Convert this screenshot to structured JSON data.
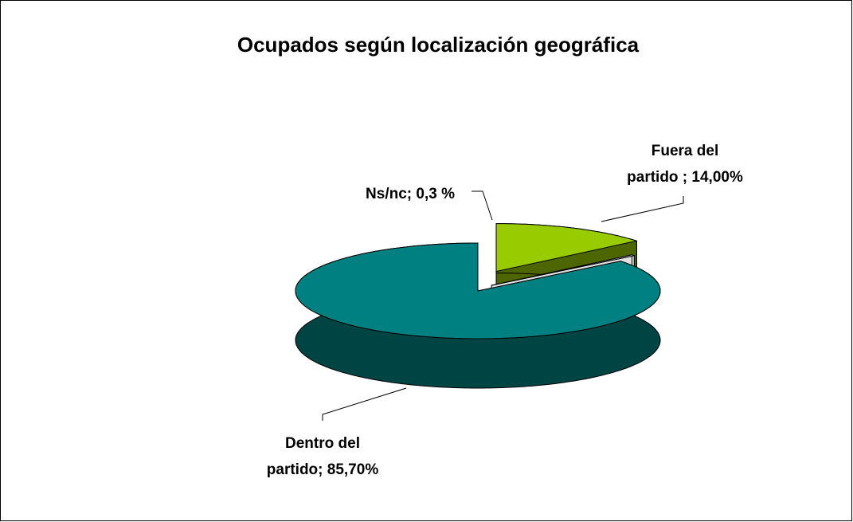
{
  "chart_data": {
    "type": "pie3d",
    "title": "Ocupados según localización geográfica",
    "categories": [
      "Dentro del partido",
      "Fuera del partido",
      "Ns/nc"
    ],
    "values": [
      85.7,
      14.0,
      0.3
    ],
    "value_labels": [
      [
        "Dentro del",
        "partido; 85,70%"
      ],
      [
        "Fuera del",
        "partido ; 14,00%"
      ],
      [
        "Ns/nc; 0,3 %"
      ]
    ],
    "colors": [
      "#008080",
      "#99cc00",
      "#ffffff"
    ],
    "side_colors": [
      "#004444",
      "#4d6600",
      "#e0e0e0"
    ]
  }
}
